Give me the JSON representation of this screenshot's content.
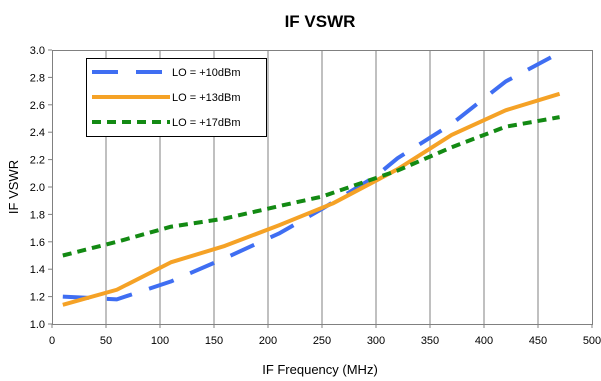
{
  "chart_data": {
    "type": "line",
    "title": "IF VSWR",
    "xlabel": "IF Frequency (MHz)",
    "ylabel": "IF VSWR",
    "xlim": [
      0,
      500
    ],
    "ylim": [
      1.0,
      3.0
    ],
    "x_ticks": [
      "0",
      "50",
      "100",
      "150",
      "200",
      "250",
      "300",
      "350",
      "400",
      "450",
      "500"
    ],
    "y_ticks": [
      "1.0",
      "1.2",
      "1.4",
      "1.6",
      "1.8",
      "2.0",
      "2.2",
      "2.4",
      "2.6",
      "2.8",
      "3.0"
    ],
    "grid": "vertical",
    "legend_position": "top-left",
    "series": [
      {
        "name": "LO = +10dBm",
        "color": "#3f6ef2",
        "style": "long-dash",
        "x": [
          10,
          60,
          110,
          160,
          210,
          250,
          300,
          320,
          370,
          420,
          470
        ],
        "y": [
          1.2,
          1.18,
          1.31,
          1.48,
          1.66,
          1.84,
          2.08,
          2.21,
          2.46,
          2.77,
          2.98
        ]
      },
      {
        "name": "LO = +13dBm",
        "color": "#f5a226",
        "style": "solid",
        "x": [
          10,
          60,
          110,
          160,
          210,
          260,
          320,
          370,
          420,
          470
        ],
        "y": [
          1.14,
          1.25,
          1.45,
          1.57,
          1.72,
          1.88,
          2.13,
          2.38,
          2.56,
          2.68
        ]
      },
      {
        "name": "LO = +17dBm",
        "color": "#138a13",
        "style": "short-dash",
        "x": [
          10,
          60,
          110,
          160,
          210,
          250,
          320,
          370,
          420,
          470
        ],
        "y": [
          1.5,
          1.6,
          1.71,
          1.77,
          1.86,
          1.93,
          2.12,
          2.29,
          2.44,
          2.51
        ]
      }
    ]
  }
}
